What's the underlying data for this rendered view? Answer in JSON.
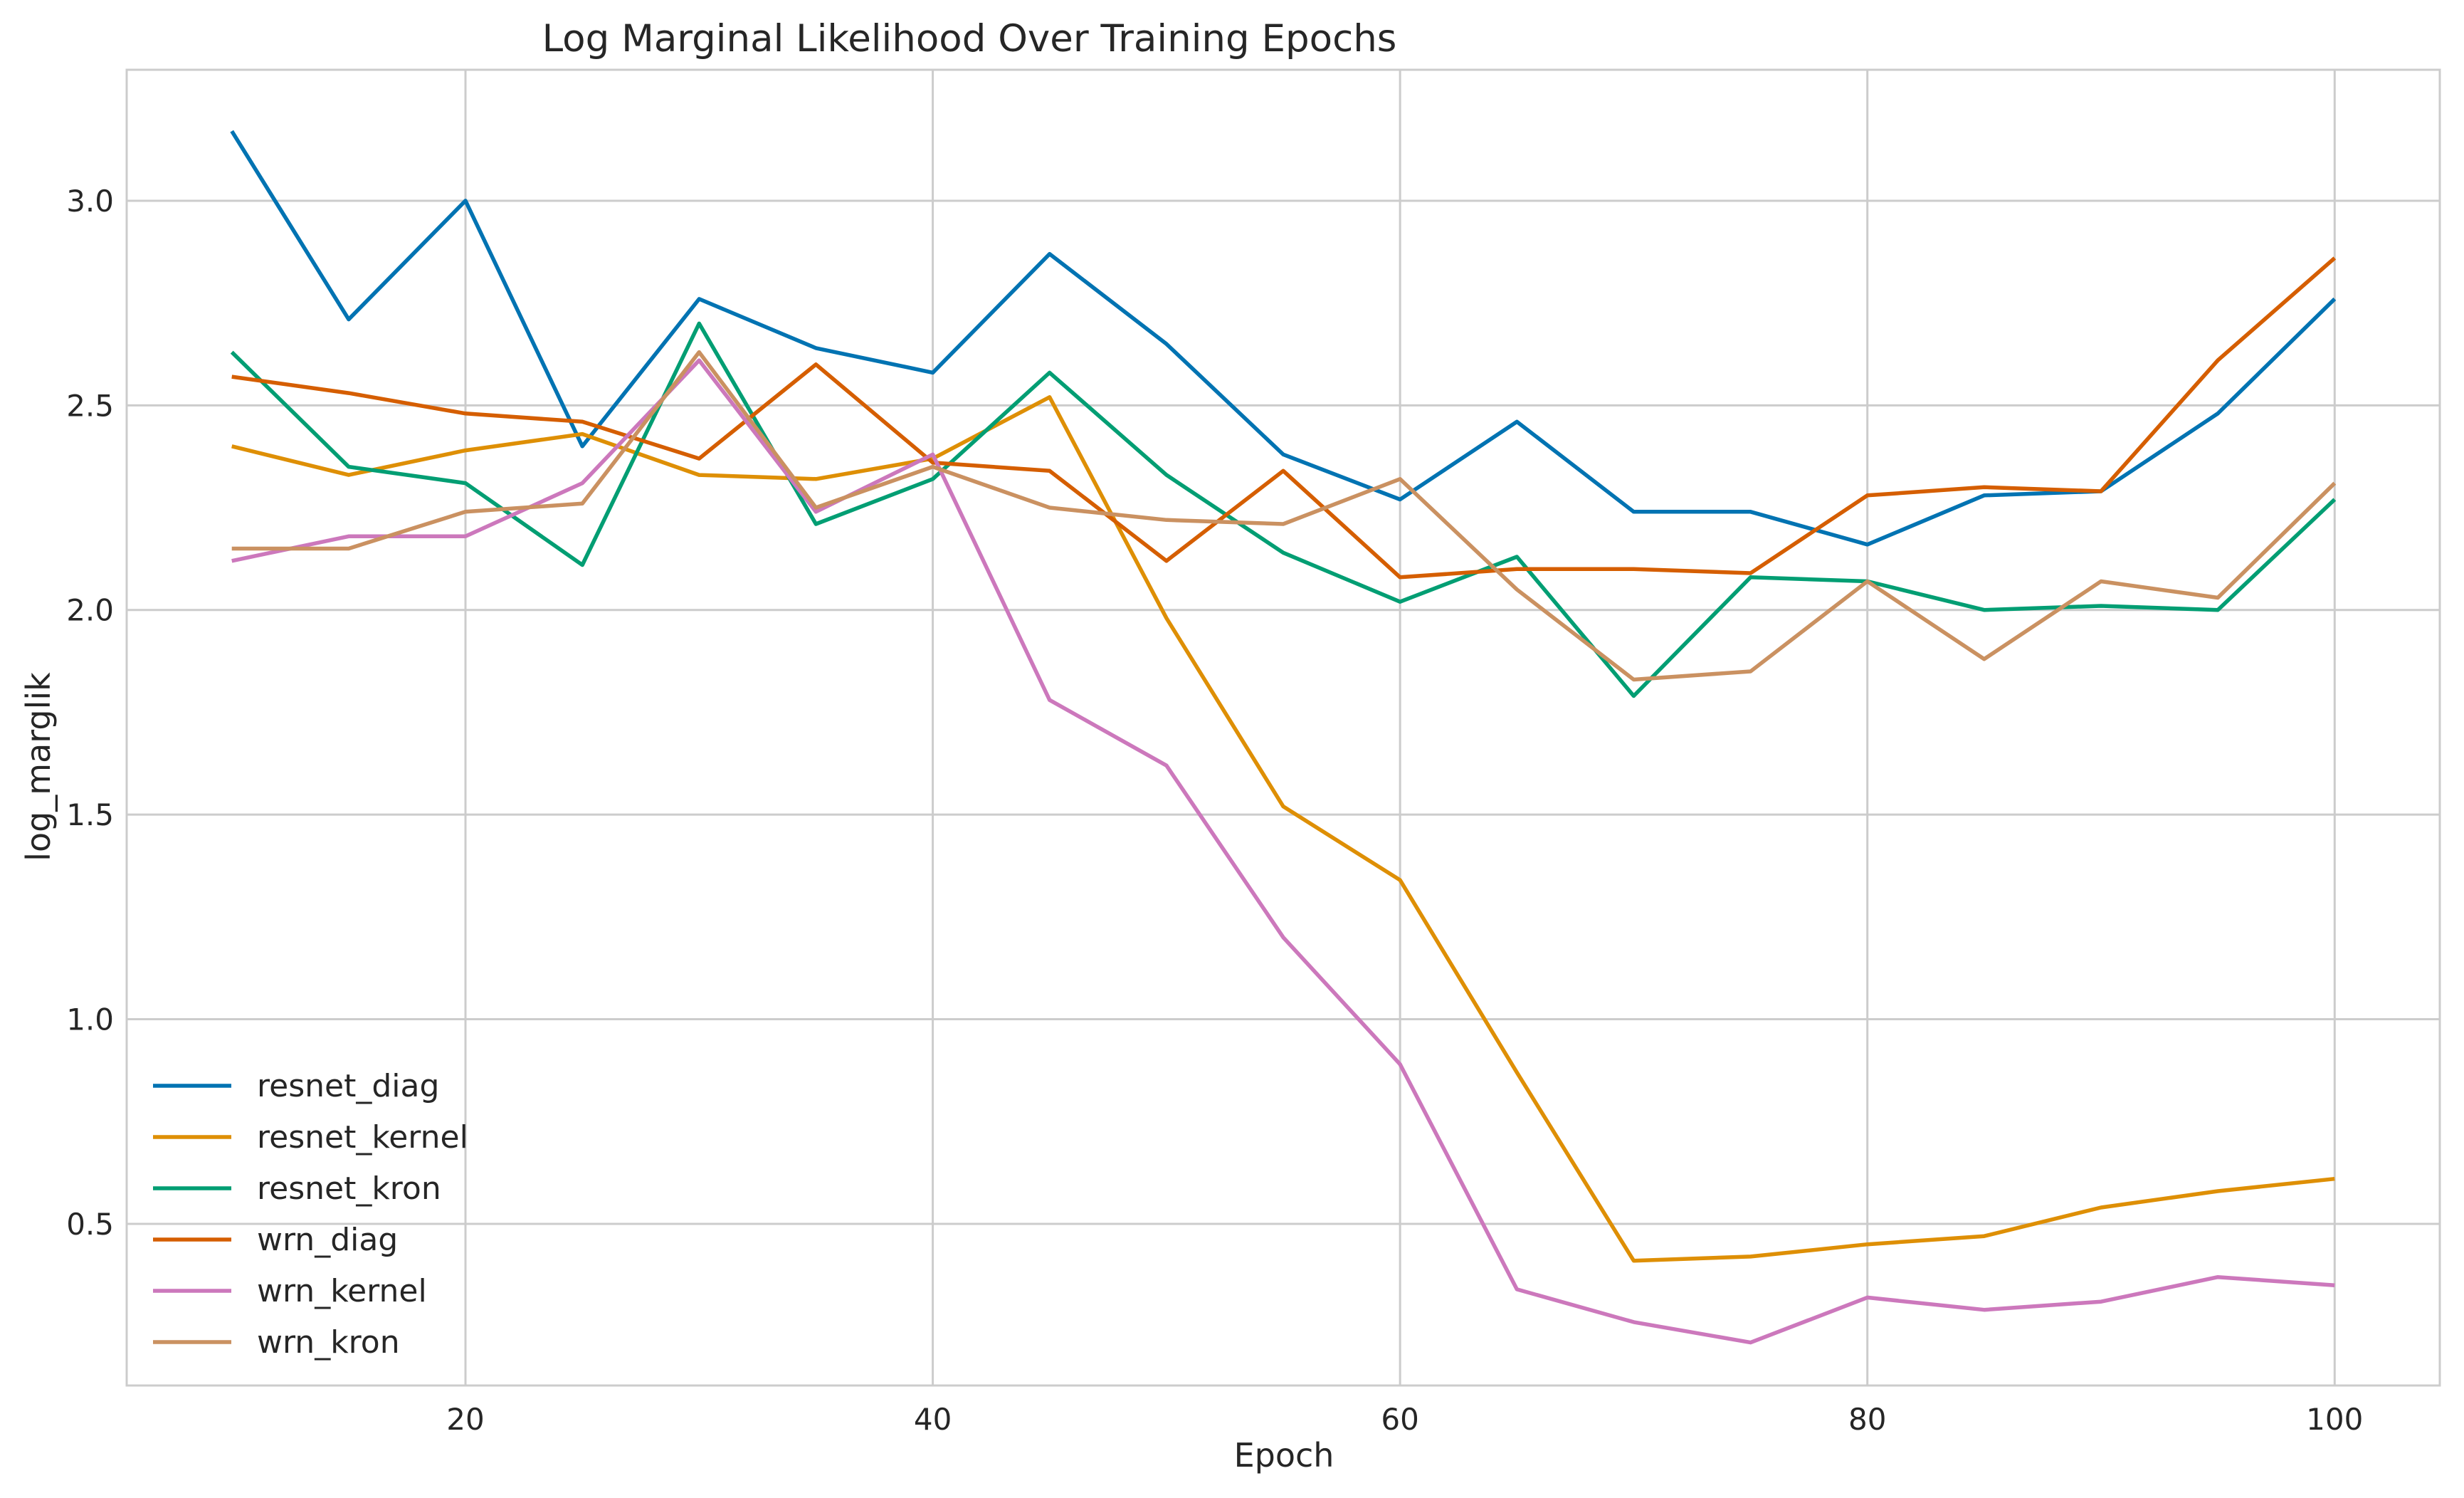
{
  "chart_data": {
    "type": "line",
    "title": "Log Marginal Likelihood Over Training Epochs",
    "xlabel": "Epoch",
    "ylabel": "log_marglik",
    "xlim": [
      5.5,
      104.5
    ],
    "ylim": [
      0.105,
      3.32
    ],
    "xticks": [
      20,
      40,
      60,
      80,
      100
    ],
    "yticks": [
      0.5,
      1.0,
      1.5,
      2.0,
      2.5,
      3.0
    ],
    "xtick_labels": [
      "20",
      "40",
      "60",
      "80",
      "100"
    ],
    "ytick_labels": [
      "0.5",
      "1.0",
      "1.5",
      "2.0",
      "2.5",
      "3.0"
    ],
    "grid": true,
    "legend_position": "lower-left",
    "x": [
      10,
      15,
      20,
      25,
      30,
      35,
      40,
      45,
      50,
      55,
      60,
      65,
      70,
      75,
      80,
      85,
      90,
      95,
      100
    ],
    "series": [
      {
        "name": "resnet_diag",
        "color": "#0173b2",
        "values": [
          3.17,
          2.71,
          3.0,
          2.4,
          2.76,
          2.64,
          2.58,
          2.87,
          2.65,
          2.38,
          2.27,
          2.46,
          2.24,
          2.24,
          2.16,
          2.28,
          2.29,
          2.48,
          2.76
        ]
      },
      {
        "name": "resnet_kernel",
        "color": "#de8f05",
        "values": [
          2.4,
          2.33,
          2.39,
          2.43,
          2.33,
          2.32,
          2.37,
          2.52,
          1.98,
          1.52,
          1.34,
          0.87,
          0.41,
          0.42,
          0.45,
          0.47,
          0.54,
          0.58,
          0.61
        ]
      },
      {
        "name": "resnet_kron",
        "color": "#029e73",
        "values": [
          2.63,
          2.35,
          2.31,
          2.11,
          2.7,
          2.21,
          2.32,
          2.58,
          2.33,
          2.14,
          2.02,
          2.13,
          1.79,
          2.08,
          2.07,
          2.0,
          2.01,
          2.0,
          2.27
        ]
      },
      {
        "name": "wrn_diag",
        "color": "#d55e00",
        "values": [
          2.57,
          2.53,
          2.48,
          2.46,
          2.37,
          2.6,
          2.36,
          2.34,
          2.12,
          2.34,
          2.08,
          2.1,
          2.1,
          2.09,
          2.28,
          2.3,
          2.29,
          2.61,
          2.86
        ]
      },
      {
        "name": "wrn_kernel",
        "color": "#cc78bc",
        "values": [
          2.12,
          2.18,
          2.18,
          2.31,
          2.61,
          2.24,
          2.38,
          1.78,
          1.62,
          1.2,
          0.89,
          0.34,
          0.26,
          0.21,
          0.32,
          0.29,
          0.31,
          0.37,
          0.35
        ]
      },
      {
        "name": "wrn_kron",
        "color": "#ca9161",
        "values": [
          2.15,
          2.15,
          2.24,
          2.26,
          2.63,
          2.25,
          2.35,
          2.25,
          2.22,
          2.21,
          2.32,
          2.05,
          1.83,
          1.85,
          2.07,
          1.88,
          2.07,
          2.03,
          2.31
        ]
      }
    ]
  }
}
